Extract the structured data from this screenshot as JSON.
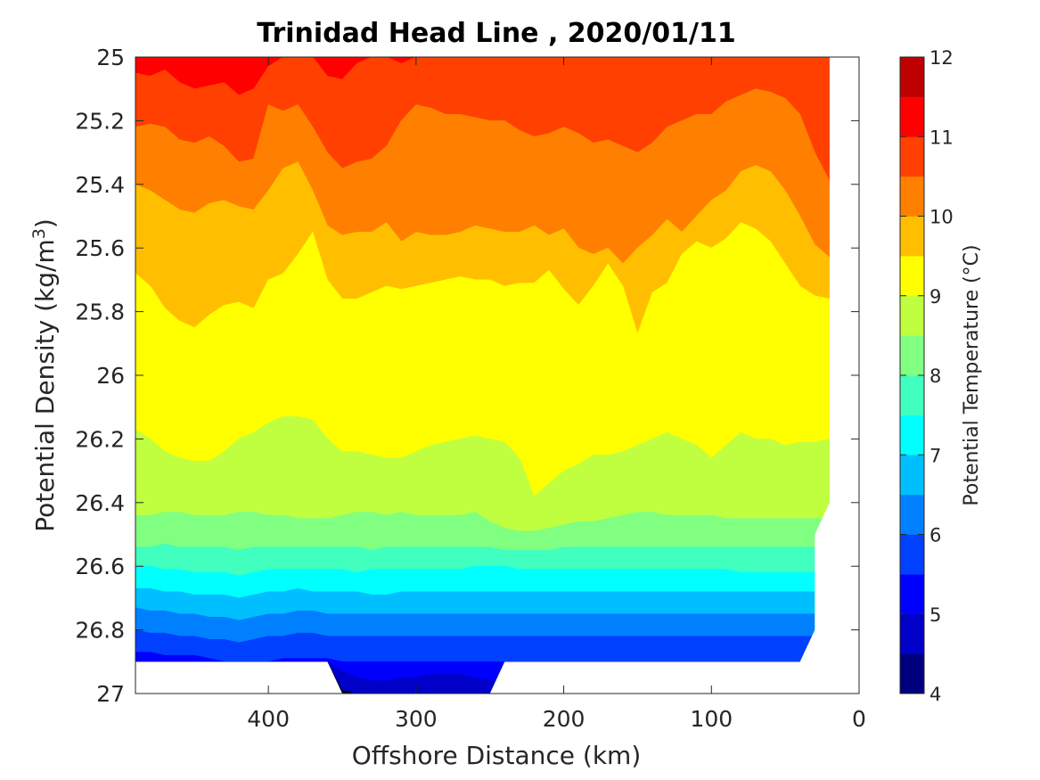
{
  "chart_data": {
    "type": "contour",
    "title": "Trinidad Head Line , 2020/01/11",
    "xlabel": "Offshore Distance (km)",
    "ylabel_main": "Potential Density (kg/m",
    "ylabel_sup": "3",
    "ylabel_tail": ")",
    "colorbar_label": "Potential Temperature (°C)",
    "xlim": [
      490,
      0
    ],
    "ylim": [
      25,
      27
    ],
    "x_reversed": true,
    "y_reversed": true,
    "x_ticks": [
      400,
      300,
      200,
      100,
      0
    ],
    "y_ticks": [
      "25",
      "25.2",
      "25.4",
      "25.6",
      "25.8",
      "26",
      "26.2",
      "26.4",
      "26.6",
      "26.8",
      "27"
    ],
    "colorbar_ticks": [
      "4",
      "5",
      "6",
      "7",
      "8",
      "9",
      "10",
      "11",
      "12"
    ],
    "colorbar_range": [
      4,
      12
    ],
    "contour_levels": [
      4,
      4.5,
      5,
      5.5,
      6,
      6.5,
      7,
      7.5,
      8,
      8.5,
      9,
      9.5,
      10,
      10.5,
      11,
      11.5,
      12
    ],
    "level_colors": [
      "#00007f",
      "#0000c8",
      "#0000ff",
      "#0040ff",
      "#0080ff",
      "#00bfff",
      "#00ffff",
      "#40ffbf",
      "#80ff80",
      "#bfff40",
      "#ffff00",
      "#ffbf00",
      "#ff8000",
      "#ff4000",
      "#ff0000",
      "#bf0000"
    ],
    "contour_x_km": [
      490,
      480,
      470,
      460,
      450,
      440,
      430,
      420,
      410,
      400,
      390,
      380,
      370,
      360,
      350,
      340,
      330,
      320,
      310,
      300,
      290,
      280,
      270,
      260,
      250,
      240,
      230,
      220,
      210,
      200,
      190,
      180,
      170,
      160,
      150,
      140,
      130,
      120,
      110,
      100,
      90,
      80,
      70,
      60,
      50,
      40,
      30,
      20
    ],
    "contour_y_density": [
      [
        25.0,
        25.0,
        25.0,
        25.0,
        25.0,
        25.0,
        25.0,
        25.0,
        25.0,
        25.0,
        25.0,
        25.0,
        25.0,
        25.0,
        25.0,
        25.0,
        25.0,
        25.0,
        25.0,
        25.0,
        25.0,
        25.0,
        25.0,
        25.0,
        25.0,
        25.0,
        25.0,
        25.0,
        25.0,
        25.0,
        25.0,
        25.0,
        25.0,
        25.0,
        25.0,
        25.0,
        25.0,
        25.0,
        25.0,
        25.0,
        25.0,
        25.0,
        25.0,
        25.0,
        25.0,
        25.0,
        25.0,
        25.0
      ],
      [
        25.0,
        25.0,
        25.0,
        25.0,
        25.0,
        25.0,
        25.0,
        25.0,
        25.0,
        25.0,
        25.0,
        25.0,
        25.0,
        25.0,
        25.0,
        25.0,
        25.0,
        25.0,
        25.0,
        25.0,
        25.0,
        25.0,
        25.0,
        25.0,
        25.0,
        25.0,
        25.0,
        25.0,
        25.01,
        25.03,
        25.05,
        25.07,
        25.08,
        25.09,
        25.07,
        25.05,
        25.03,
        25.01,
        25.0,
        25.0,
        25.0,
        25.0,
        25.0,
        25.0,
        25.0,
        25.02,
        25.05,
        25.0
      ],
      [
        25.05,
        25.06,
        25.04,
        25.08,
        25.1,
        25.09,
        25.08,
        25.12,
        25.1,
        25.03,
        25.0,
        25.0,
        25.0,
        25.06,
        25.07,
        25.02,
        25.0,
        25.0,
        25.02,
        25.0,
        25.0,
        25.0,
        25.0,
        25.0,
        25.0,
        25.0,
        25.0,
        25.0,
        25.0,
        25.0,
        25.0,
        25.0,
        25.0,
        25.0,
        25.0,
        25.0,
        25.0,
        25.0,
        25.0,
        25.0,
        25.0,
        25.0,
        25.0,
        25.0,
        25.0,
        25.0,
        25.0,
        25.0
      ],
      [
        25.22,
        25.21,
        25.22,
        25.26,
        25.27,
        25.25,
        25.28,
        25.33,
        25.32,
        25.15,
        25.17,
        25.15,
        25.22,
        25.3,
        25.35,
        25.33,
        25.32,
        25.28,
        25.2,
        25.15,
        25.16,
        25.18,
        25.18,
        25.19,
        25.2,
        25.2,
        25.23,
        25.25,
        25.24,
        25.22,
        25.24,
        25.27,
        25.26,
        25.28,
        25.3,
        25.27,
        25.22,
        25.2,
        25.18,
        25.18,
        25.14,
        25.12,
        25.1,
        25.11,
        25.13,
        25.18,
        25.3,
        25.39
      ],
      [
        25.4,
        25.42,
        25.45,
        25.48,
        25.49,
        25.46,
        25.45,
        25.47,
        25.48,
        25.42,
        25.35,
        25.33,
        25.42,
        25.53,
        25.56,
        25.55,
        25.55,
        25.52,
        25.58,
        25.55,
        25.56,
        25.56,
        25.55,
        25.53,
        25.54,
        25.55,
        25.55,
        25.53,
        25.56,
        25.54,
        25.6,
        25.62,
        25.6,
        25.65,
        25.6,
        25.56,
        25.51,
        25.55,
        25.5,
        25.45,
        25.42,
        25.36,
        25.34,
        25.36,
        25.42,
        25.5,
        25.59,
        25.63
      ],
      [
        25.68,
        25.72,
        25.79,
        25.83,
        25.85,
        25.81,
        25.78,
        25.77,
        25.79,
        25.7,
        25.68,
        25.62,
        25.55,
        25.7,
        25.76,
        25.76,
        25.74,
        25.72,
        25.73,
        25.72,
        25.71,
        25.7,
        25.69,
        25.7,
        25.7,
        25.72,
        25.71,
        25.71,
        25.67,
        25.73,
        25.78,
        25.72,
        25.65,
        25.72,
        25.87,
        25.74,
        25.71,
        25.62,
        25.58,
        25.6,
        25.57,
        25.52,
        25.54,
        25.58,
        25.65,
        25.72,
        25.75,
        25.76
      ],
      [
        26.17,
        26.2,
        26.24,
        26.26,
        26.27,
        26.27,
        26.24,
        26.2,
        26.18,
        26.15,
        26.13,
        26.13,
        26.14,
        26.2,
        26.24,
        26.24,
        26.25,
        26.26,
        26.26,
        26.24,
        26.22,
        26.21,
        26.2,
        26.19,
        26.2,
        26.21,
        26.26,
        26.38,
        26.34,
        26.3,
        26.28,
        26.25,
        26.25,
        26.24,
        26.22,
        26.2,
        26.18,
        26.2,
        26.22,
        26.26,
        26.22,
        26.18,
        26.2,
        26.2,
        26.22,
        26.21,
        26.21,
        26.2
      ],
      [
        26.44,
        26.44,
        26.43,
        26.43,
        26.44,
        26.44,
        26.44,
        26.43,
        26.43,
        26.44,
        26.44,
        26.45,
        26.45,
        26.45,
        26.44,
        26.43,
        26.43,
        26.44,
        26.43,
        26.44,
        26.44,
        26.44,
        26.44,
        26.43,
        26.46,
        26.48,
        26.49,
        26.49,
        26.48,
        26.47,
        26.46,
        26.46,
        26.45,
        26.44,
        26.43,
        26.43,
        26.44,
        26.44,
        26.44,
        26.44,
        26.45,
        26.45,
        26.45,
        26.45,
        26.45,
        26.45,
        26.45,
        26.45
      ],
      [
        26.54,
        26.54,
        26.53,
        26.54,
        26.54,
        26.54,
        26.54,
        26.55,
        26.54,
        26.54,
        26.54,
        26.54,
        26.54,
        26.54,
        26.54,
        26.54,
        26.55,
        26.54,
        26.54,
        26.54,
        26.54,
        26.54,
        26.54,
        26.54,
        26.54,
        26.55,
        26.55,
        26.55,
        26.55,
        26.54,
        26.54,
        26.54,
        26.54,
        26.54,
        26.54,
        26.54,
        26.54,
        26.54,
        26.54,
        26.54,
        26.54,
        26.54,
        26.54,
        26.54,
        26.54,
        26.54,
        26.54,
        26.54
      ],
      [
        26.6,
        26.6,
        26.61,
        26.61,
        26.62,
        26.62,
        26.62,
        26.63,
        26.62,
        26.61,
        26.61,
        26.61,
        26.61,
        26.61,
        26.61,
        26.62,
        26.61,
        26.61,
        26.61,
        26.61,
        26.61,
        26.61,
        26.61,
        26.6,
        26.6,
        26.6,
        26.61,
        26.61,
        26.61,
        26.61,
        26.61,
        26.61,
        26.61,
        26.61,
        26.61,
        26.61,
        26.61,
        26.61,
        26.61,
        26.61,
        26.61,
        26.62,
        26.62,
        26.62,
        26.62,
        26.62,
        26.62,
        26.62
      ],
      [
        26.67,
        26.67,
        26.68,
        26.68,
        26.69,
        26.69,
        26.69,
        26.7,
        26.69,
        26.68,
        26.68,
        26.67,
        26.68,
        26.68,
        26.68,
        26.68,
        26.69,
        26.69,
        26.68,
        26.68,
        26.68,
        26.68,
        26.68,
        26.68,
        26.68,
        26.68,
        26.68,
        26.68,
        26.68,
        26.68,
        26.68,
        26.68,
        26.68,
        26.68,
        26.68,
        26.68,
        26.68,
        26.68,
        26.68,
        26.68,
        26.68,
        26.68,
        26.68,
        26.68,
        26.68,
        26.68,
        26.68,
        26.68
      ],
      [
        26.73,
        26.74,
        26.74,
        26.75,
        26.75,
        26.76,
        26.76,
        26.77,
        26.76,
        26.75,
        26.75,
        26.74,
        26.74,
        26.75,
        26.75,
        26.75,
        26.75,
        26.75,
        26.75,
        26.75,
        26.75,
        26.75,
        26.75,
        26.75,
        26.75,
        26.75,
        26.75,
        26.75,
        26.75,
        26.75,
        26.75,
        26.75,
        26.75,
        26.75,
        26.75,
        26.75,
        26.75,
        26.75,
        26.75,
        26.75,
        26.75,
        26.75,
        26.75,
        26.75,
        26.75,
        26.75,
        26.75,
        26.75
      ],
      [
        26.8,
        26.81,
        26.81,
        26.82,
        26.82,
        26.83,
        26.83,
        26.84,
        26.83,
        26.82,
        26.82,
        26.81,
        26.81,
        26.82,
        26.82,
        26.82,
        26.82,
        26.82,
        26.82,
        26.82,
        26.82,
        26.82,
        26.82,
        26.82,
        26.82,
        26.82,
        26.82,
        26.82,
        26.82,
        26.82,
        26.82,
        26.82,
        26.82,
        26.82,
        26.82,
        26.82,
        26.82,
        26.82,
        26.82,
        26.82,
        26.82,
        26.82,
        26.82,
        26.82,
        26.82,
        26.82,
        26.82,
        26.82
      ],
      [
        26.87,
        26.87,
        26.88,
        26.88,
        26.88,
        26.89,
        26.9,
        26.9,
        26.9,
        26.9,
        26.89,
        26.89,
        26.89,
        26.89,
        26.9,
        26.9,
        26.9,
        26.9,
        26.9,
        26.9,
        26.9,
        26.9,
        26.9,
        26.9,
        26.9,
        26.9,
        26.9,
        26.9,
        26.9,
        26.9,
        26.9,
        26.9,
        26.9,
        26.9,
        26.9,
        26.9,
        26.9,
        26.9,
        26.9,
        26.9,
        26.9,
        26.9,
        26.9,
        26.9,
        26.9,
        26.9,
        26.9,
        26.9
      ],
      [
        26.9,
        26.9,
        26.9,
        26.9,
        26.9,
        26.9,
        26.9,
        26.9,
        26.9,
        26.9,
        26.9,
        26.9,
        26.9,
        26.9,
        26.93,
        26.95,
        26.96,
        26.96,
        26.95,
        26.95,
        26.94,
        26.94,
        26.94,
        26.95,
        26.96,
        26.96,
        26.97,
        26.97,
        26.96,
        26.96,
        26.96,
        26.96,
        26.96,
        26.96,
        26.96,
        26.96,
        26.96,
        26.96,
        26.96,
        26.96,
        26.96,
        26.96,
        26.96,
        26.96,
        26.96,
        26.96,
        26.96,
        26.96
      ],
      [
        26.9,
        26.9,
        26.9,
        26.9,
        26.9,
        26.9,
        26.9,
        26.9,
        26.9,
        26.9,
        26.9,
        26.9,
        26.9,
        26.9,
        26.99,
        27.0,
        27.0,
        27.0,
        27.0,
        27.0,
        27.0,
        27.0,
        27.0,
        27.0,
        27.0,
        27.0,
        27.0,
        27.0,
        27.0,
        27.0,
        27.0,
        27.0,
        27.0,
        27.0,
        27.0,
        27.0,
        27.0,
        27.0,
        27.0,
        27.0,
        27.0,
        27.0,
        27.0,
        27.0,
        27.0,
        27.0,
        27.0,
        27.0
      ],
      [
        26.9,
        26.9,
        26.9,
        26.9,
        26.9,
        26.9,
        26.9,
        26.9,
        26.9,
        26.9,
        26.9,
        26.9,
        26.9,
        26.9,
        27.0,
        27.0,
        27.0,
        27.0,
        27.0,
        27.0,
        27.0,
        27.0,
        27.0,
        27.0,
        27.0,
        27.0,
        27.0,
        27.0,
        27.0,
        27.0,
        27.0,
        27.0,
        27.0,
        27.0,
        27.0,
        27.0,
        27.0,
        27.0,
        27.0,
        27.0,
        27.0,
        27.0,
        27.0,
        27.0,
        27.0,
        27.0,
        27.0,
        27.0
      ]
    ],
    "band_lower_levels": [
      11.5,
      11,
      10.5,
      10,
      9.5,
      9,
      8.5,
      8,
      7.5,
      7,
      6.5,
      6,
      5.5,
      5,
      4.5
    ],
    "data_boundary": [
      [
        490,
        25.0
      ],
      [
        20,
        25.0
      ],
      [
        20,
        26.4
      ],
      [
        30,
        26.5
      ],
      [
        30,
        26.8
      ],
      [
        40,
        26.9
      ],
      [
        240,
        26.9
      ],
      [
        250,
        27.0
      ],
      [
        350,
        27.0
      ],
      [
        360,
        26.9
      ],
      [
        490,
        26.9
      ]
    ]
  }
}
